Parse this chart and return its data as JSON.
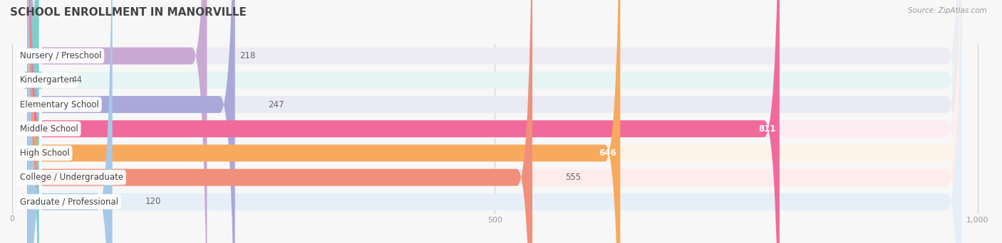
{
  "title": "SCHOOL ENROLLMENT IN MANORVILLE",
  "source": "Source: ZipAtlas.com",
  "categories": [
    "Nursery / Preschool",
    "Kindergarten",
    "Elementary School",
    "Middle School",
    "High School",
    "College / Undergraduate",
    "Graduate / Professional"
  ],
  "values": [
    218,
    44,
    247,
    811,
    646,
    555,
    120
  ],
  "bar_colors": [
    "#c9a8d4",
    "#7ecfca",
    "#a9a8d8",
    "#f06b9c",
    "#f7aa5e",
    "#f0907a",
    "#a8c8e8"
  ],
  "bg_colors": [
    "#eeecf3",
    "#e6f4f3",
    "#eaeaf5",
    "#fdedf3",
    "#fdf3e8",
    "#fdecea",
    "#e6eff8"
  ],
  "xlim_max": 1000,
  "xticks": [
    0,
    500,
    1000
  ],
  "title_fontsize": 11,
  "label_fontsize": 8.5,
  "value_fontsize": 8.5,
  "background_color": "#f7f7f7"
}
